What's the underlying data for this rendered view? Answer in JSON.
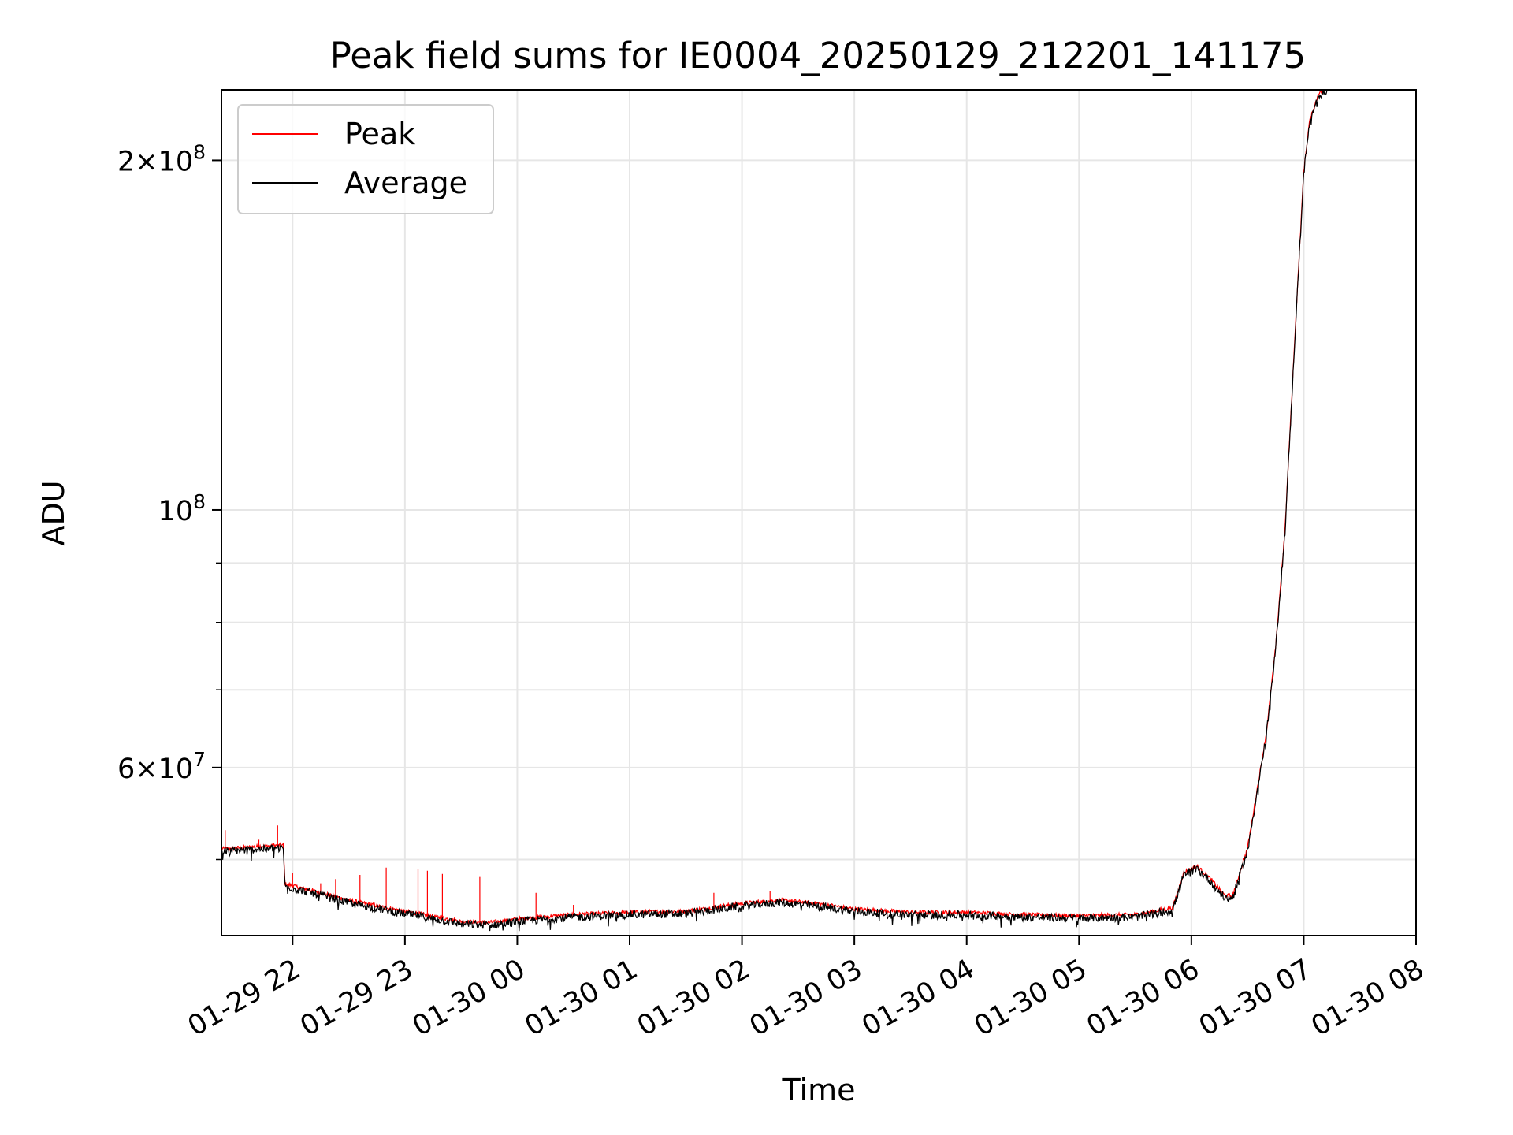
{
  "chart_data": {
    "type": "line",
    "title": "Peak field sums for IE0004_20250129_212201_141175",
    "xlabel": "Time",
    "ylabel": "ADU",
    "yscale": "log",
    "grid": true,
    "legend_position": "top-left",
    "xlim": [
      "2025-01-29 21:22",
      "2025-01-30 08:00"
    ],
    "ylim": [
      43000000,
      230000000
    ],
    "x_ticks": [
      "2025-01-29 22:00",
      "2025-01-29 23:00",
      "2025-01-30 00:00",
      "2025-01-30 01:00",
      "2025-01-30 02:00",
      "2025-01-30 03:00",
      "2025-01-30 04:00",
      "2025-01-30 05:00",
      "2025-01-30 06:00",
      "2025-01-30 07:00",
      "2025-01-30 08:00"
    ],
    "x_tick_labels": [
      "01-29 22",
      "01-29 23",
      "01-30 00",
      "01-30 01",
      "01-30 02",
      "01-30 03",
      "01-30 04",
      "01-30 05",
      "01-30 06",
      "01-30 07",
      "01-30 08"
    ],
    "y_ticks": [
      {
        "value": 200000000,
        "mantissa": "2",
        "exponent": "8"
      },
      {
        "value": 100000000,
        "mantissa": "",
        "exponent": "8"
      },
      {
        "value": 60000000,
        "mantissa": "6",
        "exponent": "7"
      }
    ],
    "y_minor_ticks": [
      50000000,
      70000000,
      80000000,
      90000000
    ],
    "series": [
      {
        "name": "Peak",
        "color": "#ff0000",
        "noise": 0.004
      },
      {
        "name": "Average",
        "color": "#000000",
        "noise": 0.008
      }
    ],
    "x": [
      "2025-01-29 21:22",
      "2025-01-29 21:30",
      "2025-01-29 21:45",
      "2025-01-29 21:55",
      "2025-01-29 21:56",
      "2025-01-29 22:10",
      "2025-01-29 22:30",
      "2025-01-29 22:50",
      "2025-01-29 23:10",
      "2025-01-29 23:30",
      "2025-01-29 23:45",
      "2025-01-30 00:00",
      "2025-01-30 00:30",
      "2025-01-30 01:00",
      "2025-01-30 01:30",
      "2025-01-30 02:00",
      "2025-01-30 02:20",
      "2025-01-30 02:40",
      "2025-01-30 03:00",
      "2025-01-30 03:30",
      "2025-01-30 04:00",
      "2025-01-30 04:30",
      "2025-01-30 05:00",
      "2025-01-30 05:30",
      "2025-01-30 05:50",
      "2025-01-30 05:56",
      "2025-01-30 06:03",
      "2025-01-30 06:10",
      "2025-01-30 06:18",
      "2025-01-30 06:22",
      "2025-01-30 06:30",
      "2025-01-30 06:40",
      "2025-01-30 06:45",
      "2025-01-30 06:50",
      "2025-01-30 06:55",
      "2025-01-30 07:00",
      "2025-01-30 07:03",
      "2025-01-30 07:08",
      "2025-01-30 07:14"
    ],
    "y": [
      50900000,
      51000000,
      51200000,
      51300000,
      47500000,
      46900000,
      46000000,
      45300000,
      44700000,
      44100000,
      44000000,
      44300000,
      44700000,
      44900000,
      45000000,
      45700000,
      46000000,
      45700000,
      45200000,
      44900000,
      44900000,
      44700000,
      44600000,
      44700000,
      45300000,
      48600000,
      49200000,
      48000000,
      46400000,
      46400000,
      51000000,
      64000000,
      76000000,
      96000000,
      138000000,
      195000000,
      215000000,
      228000000,
      231000000
    ],
    "spikes": [
      {
        "x": "2025-01-29 21:24",
        "y": 53000000
      },
      {
        "x": "2025-01-29 21:42",
        "y": 52000000
      },
      {
        "x": "2025-01-29 21:52",
        "y": 53500000
      },
      {
        "x": "2025-01-29 22:00",
        "y": 48700000
      },
      {
        "x": "2025-01-29 22:15",
        "y": 47700000
      },
      {
        "x": "2025-01-29 22:23",
        "y": 48100000
      },
      {
        "x": "2025-01-29 22:36",
        "y": 48500000
      },
      {
        "x": "2025-01-29 22:50",
        "y": 49200000
      },
      {
        "x": "2025-01-29 23:07",
        "y": 49100000
      },
      {
        "x": "2025-01-29 23:12",
        "y": 48900000
      },
      {
        "x": "2025-01-29 23:20",
        "y": 48600000
      },
      {
        "x": "2025-01-29 23:40",
        "y": 48300000
      },
      {
        "x": "2025-01-30 00:10",
        "y": 46800000
      },
      {
        "x": "2025-01-30 00:30",
        "y": 45700000
      },
      {
        "x": "2025-01-30 01:45",
        "y": 46800000
      },
      {
        "x": "2025-01-30 02:15",
        "y": 47000000
      }
    ]
  }
}
